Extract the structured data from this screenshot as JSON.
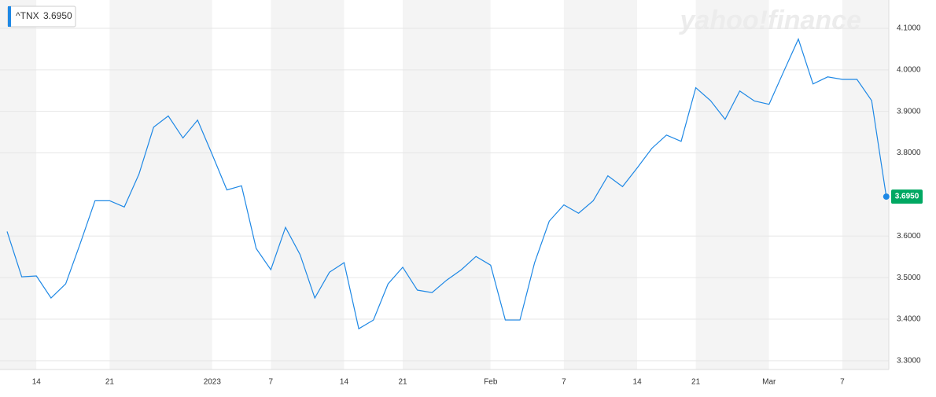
{
  "chart_data": {
    "type": "line",
    "symbol": "^TNX",
    "current_price": {
      "value": 3.695,
      "label": "3.6950"
    },
    "watermark": "yahoo!finance",
    "categories": [
      null,
      null,
      "14",
      null,
      null,
      null,
      null,
      "21",
      null,
      null,
      null,
      null,
      null,
      null,
      "2023",
      null,
      null,
      null,
      "7",
      null,
      null,
      null,
      null,
      "14",
      null,
      null,
      null,
      "21",
      null,
      null,
      null,
      null,
      null,
      "Feb",
      null,
      null,
      null,
      null,
      "7",
      null,
      null,
      null,
      null,
      "14",
      null,
      null,
      null,
      "21",
      null,
      null,
      null,
      null,
      "Mar",
      null,
      null,
      null,
      null,
      "7",
      null,
      null,
      null
    ],
    "series": [
      {
        "name": "^TNX",
        "color": "#1e88e5",
        "values": [
          3.611,
          3.502,
          3.504,
          3.451,
          3.485,
          3.583,
          3.685,
          3.685,
          3.67,
          3.749,
          3.862,
          3.889,
          3.836,
          3.879,
          3.796,
          3.711,
          3.721,
          3.57,
          3.519,
          3.621,
          3.555,
          3.451,
          3.513,
          3.536,
          3.377,
          3.398,
          3.485,
          3.525,
          3.47,
          3.464,
          3.494,
          3.519,
          3.551,
          3.53,
          3.398,
          3.398,
          3.536,
          3.636,
          3.675,
          3.655,
          3.685,
          3.745,
          3.719,
          3.764,
          3.811,
          3.843,
          3.828,
          3.957,
          3.926,
          3.881,
          3.949,
          3.925,
          3.917,
          3.996,
          4.074,
          3.966,
          3.983,
          3.977,
          3.977,
          3.926,
          3.695
        ]
      }
    ],
    "ylim": [
      3.279,
      4.168
    ],
    "yticks": [
      {
        "value": 3.3,
        "label": "3.3000"
      },
      {
        "value": 3.4,
        "label": "3.4000"
      },
      {
        "value": 3.5,
        "label": "3.5000"
      },
      {
        "value": 3.6,
        "label": "3.6000"
      },
      {
        "value": 3.8,
        "label": "3.8000"
      },
      {
        "value": 3.9,
        "label": "3.9000"
      },
      {
        "value": 4.0,
        "label": "4.0000"
      },
      {
        "value": 4.1,
        "label": "4.1000"
      }
    ],
    "grid": true
  }
}
